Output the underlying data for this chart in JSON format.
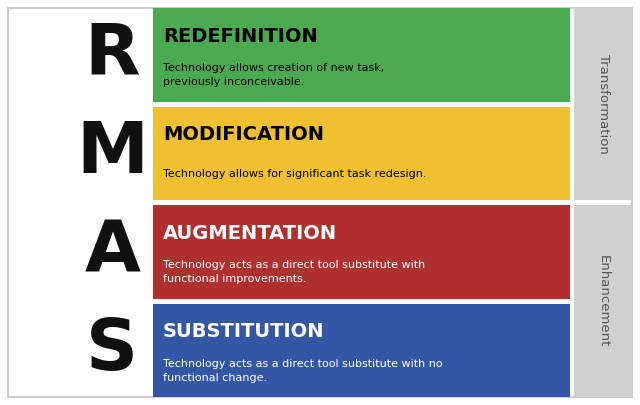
{
  "background_color": "#ffffff",
  "rows": [
    {
      "letter": "R",
      "title": "REDEFINITION",
      "description": "Technology allows creation of new task,\npreviously inconceivable.",
      "box_color": "#4aaa50",
      "title_color": "#000000",
      "desc_color": "#000000"
    },
    {
      "letter": "M",
      "title": "MODIFICATION",
      "description": "Technology allows for significant task redesign.",
      "box_color": "#f0c030",
      "title_color": "#000000",
      "desc_color": "#000000"
    },
    {
      "letter": "A",
      "title": "AUGMENTATION",
      "description": "Technology acts as a direct tool substitute with\nfunctional improvements.",
      "box_color": "#b03030",
      "title_color": "#ffffff",
      "desc_color": "#ffffff"
    },
    {
      "letter": "S",
      "title": "SUBSTITUTION",
      "description": "Technology acts as a direct tool substitute with no\nfunctional change.",
      "box_color": "#3457a5",
      "title_color": "#ffffff",
      "desc_color": "#ffffff"
    }
  ],
  "side_labels": [
    {
      "text": "Transformation",
      "rows": [
        0,
        1
      ],
      "bg_color": "#d0d0d0",
      "text_color": "#555555"
    },
    {
      "text": "Enhancement",
      "rows": [
        2,
        3
      ],
      "bg_color": "#d0d0d0",
      "text_color": "#555555"
    }
  ],
  "fig_width": 6.4,
  "fig_height": 4.05,
  "dpi": 100
}
